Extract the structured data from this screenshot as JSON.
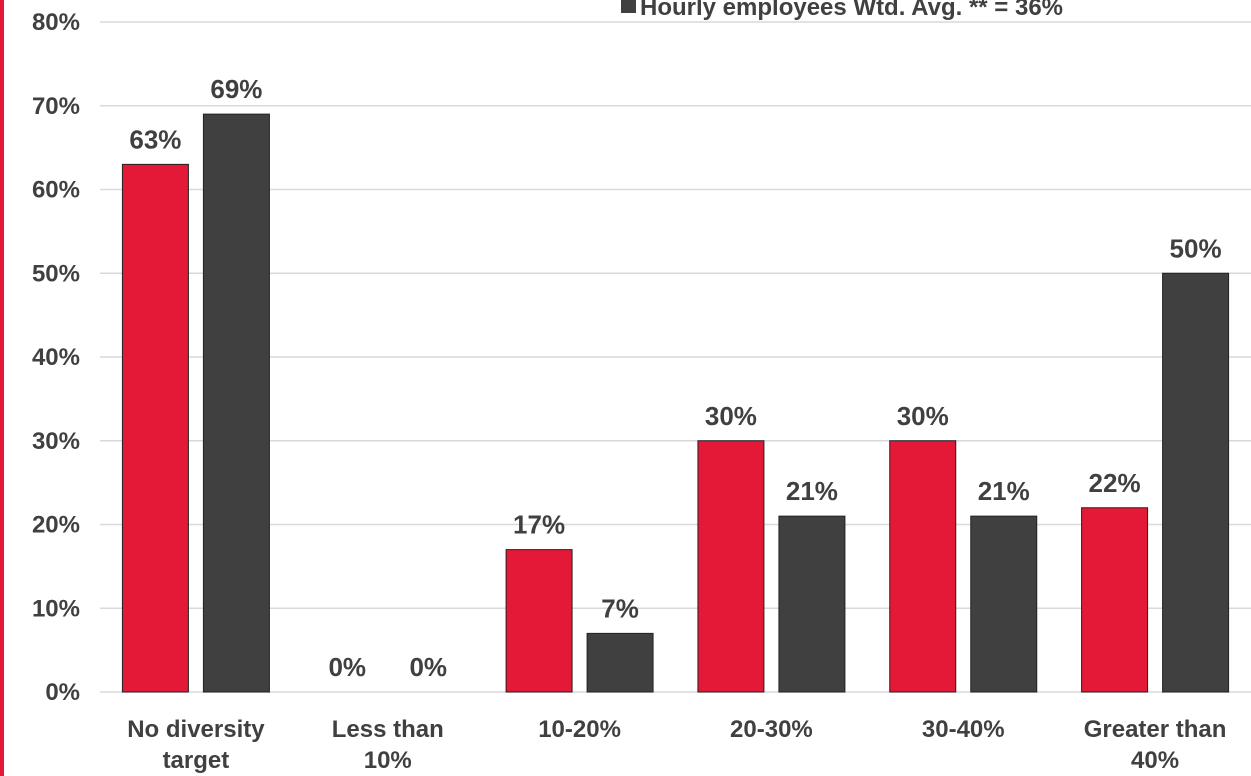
{
  "chart_data": {
    "type": "bar",
    "categories": [
      [
        "No diversity",
        "target"
      ],
      [
        "Less than",
        "10%"
      ],
      [
        "10-20%"
      ],
      [
        "20-30%"
      ],
      [
        "30-40%"
      ],
      [
        "Greater than",
        "40%"
      ]
    ],
    "series": [
      {
        "color": "#e31937",
        "values": [
          63,
          0,
          17,
          30,
          30,
          22
        ],
        "labels": [
          "63%",
          "0%",
          "17%",
          "30%",
          "30%",
          "22%"
        ]
      },
      {
        "name": "Hourly employees Wtd. Avg. ** = 36%",
        "color": "#404040",
        "values": [
          69,
          0,
          7,
          21,
          21,
          50
        ],
        "labels": [
          "69%",
          "0%",
          "7%",
          "21%",
          "21%",
          "50%"
        ]
      }
    ],
    "ylim": [
      0,
      80
    ],
    "yticks": [
      "0%",
      "10%",
      "20%",
      "30%",
      "40%",
      "50%",
      "60%",
      "70%",
      "80%"
    ],
    "grid": true,
    "legend_position": "top-right"
  },
  "colors": {
    "accent": "#e31937",
    "dark": "#404040",
    "grid": "#d9d9d9"
  }
}
